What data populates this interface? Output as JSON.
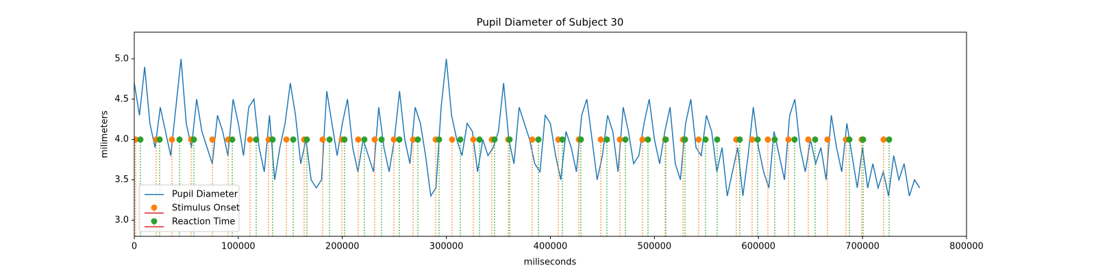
{
  "chart_data": {
    "type": "line",
    "title": "Pupil Diameter of Subject 30",
    "xlabel": "miliseconds",
    "ylabel": "milimeters",
    "xlim": [
      0,
      800000
    ],
    "ylim": [
      2.8,
      5.33
    ],
    "xticks": [
      0,
      100000,
      200000,
      300000,
      400000,
      500000,
      600000,
      700000,
      800000
    ],
    "yticks": [
      {
        "value": 3,
        "label": "3.0"
      },
      3.5,
      {
        "value": 4,
        "label": "4.0"
      },
      4.5,
      {
        "value": 5,
        "label": "5.0"
      }
    ],
    "legend": "lower left",
    "series": [
      {
        "name": "Pupil Diameter",
        "style": "line",
        "color": "#1f77b4",
        "x": [
          0,
          5000,
          10000,
          15000,
          20000,
          25000,
          30000,
          35000,
          40000,
          45000,
          50000,
          55000,
          60000,
          65000,
          70000,
          75000,
          80000,
          85000,
          90000,
          95000,
          100000,
          105000,
          110000,
          115000,
          120000,
          125000,
          130000,
          135000,
          140000,
          145000,
          150000,
          155000,
          160000,
          165000,
          170000,
          175000,
          180000,
          185000,
          190000,
          195000,
          200000,
          205000,
          210000,
          215000,
          220000,
          225000,
          230000,
          235000,
          240000,
          245000,
          250000,
          255000,
          260000,
          265000,
          270000,
          275000,
          280000,
          285000,
          290000,
          295000,
          300000,
          305000,
          310000,
          315000,
          320000,
          325000,
          330000,
          335000,
          340000,
          345000,
          350000,
          355000,
          360000,
          365000,
          370000,
          375000,
          380000,
          385000,
          390000,
          395000,
          400000,
          405000,
          410000,
          415000,
          420000,
          425000,
          430000,
          435000,
          440000,
          445000,
          450000,
          455000,
          460000,
          465000,
          470000,
          475000,
          480000,
          485000,
          490000,
          495000,
          500000,
          505000,
          510000,
          515000,
          520000,
          525000,
          530000,
          535000,
          540000,
          545000,
          550000,
          555000,
          560000,
          565000,
          570000,
          575000,
          580000,
          585000,
          590000,
          595000,
          600000,
          605000,
          610000,
          615000,
          620000,
          625000,
          630000,
          635000,
          640000,
          645000,
          650000,
          655000,
          660000,
          665000,
          670000,
          675000,
          680000,
          685000,
          690000,
          695000,
          700000,
          705000,
          710000,
          715000,
          720000,
          725000,
          730000,
          735000,
          740000,
          745000,
          750000,
          755000
        ],
        "values": [
          4.7,
          4.3,
          4.9,
          4.2,
          3.9,
          4.4,
          4.1,
          3.8,
          4.4,
          5.0,
          4.2,
          3.9,
          4.5,
          4.1,
          3.9,
          3.7,
          4.3,
          4.1,
          3.8,
          4.5,
          4.2,
          3.8,
          4.4,
          4.5,
          3.9,
          3.6,
          4.3,
          3.5,
          3.9,
          4.2,
          4.7,
          4.3,
          3.7,
          4.0,
          3.5,
          3.4,
          3.5,
          4.6,
          4.2,
          3.8,
          4.2,
          4.5,
          3.9,
          3.6,
          4.0,
          3.8,
          3.6,
          4.4,
          3.9,
          3.6,
          4.0,
          4.6,
          4.0,
          3.7,
          4.4,
          4.2,
          3.8,
          3.3,
          3.4,
          4.4,
          5.0,
          4.3,
          4.0,
          3.8,
          4.2,
          4.1,
          3.6,
          4.0,
          3.8,
          3.9,
          4.1,
          4.7,
          4.0,
          3.7,
          4.4,
          4.2,
          4.0,
          3.7,
          3.6,
          4.3,
          4.2,
          3.8,
          3.5,
          4.1,
          3.9,
          3.6,
          4.3,
          4.5,
          4.0,
          3.5,
          3.8,
          4.3,
          4.1,
          3.6,
          4.4,
          4.1,
          3.7,
          3.8,
          4.2,
          4.5,
          4.0,
          3.7,
          4.1,
          4.4,
          3.7,
          3.5,
          4.2,
          4.5,
          3.9,
          3.8,
          4.3,
          4.1,
          3.6,
          3.9,
          3.3,
          3.6,
          3.9,
          3.3,
          3.8,
          4.4,
          3.9,
          3.6,
          3.4,
          4.1,
          3.8,
          3.5,
          4.3,
          4.5,
          3.9,
          3.6,
          4.0,
          3.7,
          3.9,
          3.5,
          4.3,
          3.9,
          3.6,
          4.2,
          3.8,
          3.4,
          3.9,
          3.4,
          3.7,
          3.4,
          3.6,
          3.3,
          3.8,
          3.5,
          3.7,
          3.3,
          3.5,
          3.4
        ]
      },
      {
        "name": "Stimulus Onset",
        "style": "stem",
        "color": "#ff7f0e",
        "x": [
          1300,
          21100,
          36200,
          54700,
          75100,
          90200,
          111300,
          129100,
          146200,
          163300,
          181100,
          199500,
          215300,
          231100,
          249500,
          268000,
          289700,
          305500,
          325900,
          343700,
          359500,
          382500,
          407600,
          427300,
          448400,
          466800,
          488500,
          510300,
          527400,
          542500,
          578700,
          593900,
          609000,
          628800,
          647900,
          666300,
          684100,
          699200,
          720300
        ],
        "values": [
          4,
          4,
          4,
          4,
          4,
          4,
          4,
          4,
          4,
          4,
          4,
          4,
          4,
          4,
          4,
          4,
          4,
          4,
          4,
          4,
          4,
          4,
          4,
          4,
          4,
          4,
          4,
          4,
          4,
          4,
          4,
          4,
          4,
          4,
          4,
          4,
          4,
          4,
          4
        ]
      },
      {
        "name": "Reaction Time",
        "style": "stem",
        "color": "#2ca02c",
        "x": [
          5900,
          24400,
          43500,
          57300,
          94200,
          117200,
          133000,
          152800,
          165900,
          187700,
          202100,
          221200,
          237700,
          254800,
          272600,
          293000,
          313400,
          331800,
          346300,
          360800,
          388500,
          411500,
          429300,
          454300,
          472100,
          493800,
          510900,
          529400,
          549100,
          560300,
          582000,
          599200,
          615600,
          634700,
          654500,
          687400,
          700600,
          725600
        ],
        "values": [
          4,
          4,
          4,
          4,
          4,
          4,
          4,
          4,
          4,
          4,
          4,
          4,
          4,
          4,
          4,
          4,
          4,
          4,
          4,
          4,
          4,
          4,
          4,
          4,
          4,
          4,
          4,
          4,
          4,
          4,
          4,
          4,
          4,
          4,
          4,
          4,
          4,
          4
        ]
      }
    ]
  }
}
